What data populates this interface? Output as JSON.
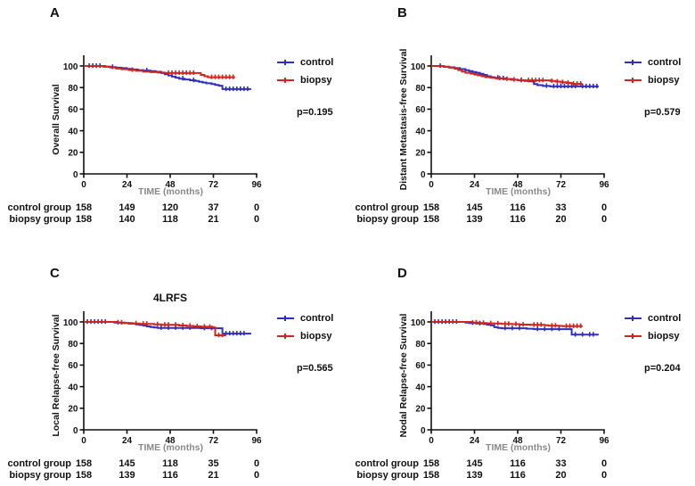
{
  "figure_colors": {
    "control": "#2e2ec0",
    "biopsy": "#d2241d",
    "axis": "#111111",
    "time_label_gray": "#8a8a8a"
  },
  "chart_data": [
    {
      "type": "line",
      "subtype": "kaplan-meier-step",
      "panel": "A",
      "title": "",
      "ylabel": "Overall Survival",
      "xlabel": "TIME (months)",
      "xlim": [
        0,
        96
      ],
      "ylim": [
        0,
        100
      ],
      "xticks": [
        0,
        24,
        48,
        72,
        96
      ],
      "yticks": [
        0,
        20,
        40,
        60,
        80,
        100
      ],
      "legend_position": "right",
      "grid": false,
      "p_value": "p=0.195",
      "series": [
        {
          "name": "control",
          "color": "#2e2ec0",
          "steps": [
            [
              0,
              100
            ],
            [
              11,
              99.4
            ],
            [
              14,
              99
            ],
            [
              18,
              98.4
            ],
            [
              21,
              98
            ],
            [
              24,
              97.3
            ],
            [
              27,
              96.8
            ],
            [
              30,
              96.2
            ],
            [
              33,
              95.8
            ],
            [
              37,
              95.3
            ],
            [
              40,
              94.6
            ],
            [
              43,
              93.5
            ],
            [
              45,
              92.3
            ],
            [
              47,
              91.2
            ],
            [
              49,
              90.2
            ],
            [
              51,
              89.2
            ],
            [
              53,
              88.3
            ],
            [
              56,
              87.5
            ],
            [
              59,
              86.8
            ],
            [
              62,
              86.2
            ],
            [
              64,
              85.4
            ],
            [
              66,
              84.7
            ],
            [
              68,
              84
            ],
            [
              71,
              83.2
            ],
            [
              73,
              82.5
            ],
            [
              75,
              81.7
            ],
            [
              77,
              78.6
            ],
            [
              93,
              78.6
            ]
          ],
          "censor_x": [
            3,
            5,
            7,
            9,
            16,
            35,
            55,
            61,
            79,
            81,
            83,
            85,
            87,
            89,
            91
          ]
        },
        {
          "name": "biopsy",
          "color": "#d2241d",
          "steps": [
            [
              0,
              100
            ],
            [
              12,
              99.4
            ],
            [
              15,
              98.6
            ],
            [
              18,
              97.6
            ],
            [
              21,
              97
            ],
            [
              25,
              96.3
            ],
            [
              29,
              95.5
            ],
            [
              33,
              94.9
            ],
            [
              37,
              94.3
            ],
            [
              41,
              93.9
            ],
            [
              45,
              93.5
            ],
            [
              63,
              93.5
            ],
            [
              65,
              91.7
            ],
            [
              67,
              90.5
            ],
            [
              69,
              89.6
            ],
            [
              84,
              89.6
            ]
          ],
          "censor_x": [
            27,
            47,
            49,
            51,
            53,
            55,
            57,
            59,
            61,
            71,
            73,
            75,
            77,
            79,
            81,
            83
          ]
        }
      ],
      "at_risk": {
        "row_labels": [
          "control group",
          "biopsy group"
        ],
        "time_points": [
          0,
          24,
          48,
          72,
          96
        ],
        "values": [
          [
            158,
            149,
            120,
            37,
            0
          ],
          [
            158,
            140,
            118,
            21,
            0
          ]
        ]
      }
    },
    {
      "type": "line",
      "subtype": "kaplan-meier-step",
      "panel": "B",
      "title": "",
      "ylabel": "Distant Metastasis-free Survival",
      "xlabel": "TIME (months)",
      "xlim": [
        0,
        96
      ],
      "ylim": [
        0,
        100
      ],
      "xticks": [
        0,
        24,
        48,
        72,
        96
      ],
      "yticks": [
        0,
        20,
        40,
        60,
        80,
        100
      ],
      "legend_position": "right",
      "grid": false,
      "p_value": "p=0.579",
      "series": [
        {
          "name": "control",
          "color": "#2e2ec0",
          "steps": [
            [
              0,
              100
            ],
            [
              7,
              99.4
            ],
            [
              10,
              98.8
            ],
            [
              13,
              98
            ],
            [
              16,
              97.1
            ],
            [
              19,
              96.1
            ],
            [
              21,
              95.3
            ],
            [
              23,
              94.5
            ],
            [
              25,
              93.7
            ],
            [
              27,
              92.7
            ],
            [
              29,
              91.7
            ],
            [
              31,
              90.5
            ],
            [
              33,
              89.7
            ],
            [
              35,
              89.1
            ],
            [
              38,
              88.5
            ],
            [
              42,
              87.9
            ],
            [
              45,
              87.3
            ],
            [
              48,
              86.7
            ],
            [
              52,
              86.1
            ],
            [
              55,
              85.7
            ],
            [
              57,
              83.2
            ],
            [
              59,
              82.2
            ],
            [
              62,
              81.5
            ],
            [
              66,
              81.1
            ],
            [
              93,
              81.1
            ]
          ],
          "censor_x": [
            5,
            37,
            40,
            50,
            64,
            68,
            70,
            72,
            74,
            76,
            78,
            80,
            84,
            86,
            88,
            90,
            92
          ]
        },
        {
          "name": "biopsy",
          "color": "#d2241d",
          "steps": [
            [
              0,
              100
            ],
            [
              7,
              99.2
            ],
            [
              10,
              98.4
            ],
            [
              13,
              97.4
            ],
            [
              15,
              96.2
            ],
            [
              17,
              94.9
            ],
            [
              19,
              93.7
            ],
            [
              22,
              92.9
            ],
            [
              24,
              92.1
            ],
            [
              26,
              91.3
            ],
            [
              28,
              90.5
            ],
            [
              30,
              89.7
            ],
            [
              33,
              89.1
            ],
            [
              36,
              88.5
            ],
            [
              40,
              87.9
            ],
            [
              44,
              87.3
            ],
            [
              48,
              86.9
            ],
            [
              52,
              86.7
            ],
            [
              64,
              86.7
            ],
            [
              66,
              86.1
            ],
            [
              69,
              85.5
            ],
            [
              72,
              84.9
            ],
            [
              75,
              84.3
            ],
            [
              78,
              83.5
            ],
            [
              84,
              83.5
            ]
          ],
          "censor_x": [
            38,
            42,
            46,
            50,
            54,
            56,
            58,
            60,
            62,
            67,
            70,
            73,
            76,
            79,
            81,
            83
          ]
        }
      ],
      "at_risk": {
        "row_labels": [
          "control group",
          "biopsy group"
        ],
        "time_points": [
          0,
          24,
          48,
          72,
          96
        ],
        "values": [
          [
            158,
            145,
            116,
            33,
            0
          ],
          [
            158,
            139,
            116,
            20,
            0
          ]
        ]
      }
    },
    {
      "type": "line",
      "subtype": "kaplan-meier-step",
      "panel": "C",
      "title": "4LRFS",
      "ylabel": "Local Relapse-free Survival",
      "xlabel": "TIME (months)",
      "xlim": [
        0,
        96
      ],
      "ylim": [
        0,
        100
      ],
      "xticks": [
        0,
        24,
        48,
        72,
        96
      ],
      "yticks": [
        0,
        20,
        40,
        60,
        80,
        100
      ],
      "legend_position": "right",
      "grid": false,
      "p_value": "p=0.565",
      "series": [
        {
          "name": "control",
          "color": "#2e2ec0",
          "steps": [
            [
              0,
              100
            ],
            [
              15,
              100
            ],
            [
              17,
              99.4
            ],
            [
              21,
              99
            ],
            [
              25,
              98.4
            ],
            [
              29,
              97.8
            ],
            [
              31,
              97.2
            ],
            [
              33,
              96.6
            ],
            [
              35,
              95.9
            ],
            [
              37,
              95.3
            ],
            [
              39,
              94.9
            ],
            [
              41,
              94.5
            ],
            [
              63,
              94.5
            ],
            [
              65,
              94.1
            ],
            [
              76,
              94.1
            ],
            [
              77,
              89.2
            ],
            [
              93,
              89.2
            ]
          ],
          "censor_x": [
            2,
            4,
            6,
            8,
            10,
            12,
            19,
            43,
            47,
            51,
            55,
            59,
            67,
            71,
            79,
            81,
            83,
            85,
            87,
            89
          ]
        },
        {
          "name": "biopsy",
          "color": "#d2241d",
          "steps": [
            [
              0,
              100
            ],
            [
              17,
              100
            ],
            [
              19,
              99.4
            ],
            [
              23,
              99
            ],
            [
              27,
              98.6
            ],
            [
              31,
              98.2
            ],
            [
              37,
              98.2
            ],
            [
              39,
              97.7
            ],
            [
              43,
              97.3
            ],
            [
              49,
              97.3
            ],
            [
              53,
              96.7
            ],
            [
              57,
              96.3
            ],
            [
              61,
              95.9
            ],
            [
              65,
              95.5
            ],
            [
              69,
              95.3
            ],
            [
              72,
              94.9
            ],
            [
              73,
              87.6
            ],
            [
              79,
              87.6
            ]
          ],
          "censor_x": [
            21,
            29,
            33,
            35,
            41,
            45,
            47,
            51,
            55,
            59,
            63,
            67,
            70,
            75,
            77
          ]
        }
      ],
      "at_risk": {
        "row_labels": [
          "control group",
          "biopsy group"
        ],
        "time_points": [
          0,
          24,
          48,
          72,
          96
        ],
        "values": [
          [
            158,
            145,
            118,
            35,
            0
          ],
          [
            158,
            139,
            116,
            21,
            0
          ]
        ]
      }
    },
    {
      "type": "line",
      "subtype": "kaplan-meier-step",
      "panel": "D",
      "title": "",
      "ylabel": "Nodal Relapse-free Survival",
      "xlabel": "TIME (months)",
      "xlim": [
        0,
        96
      ],
      "ylim": [
        0,
        100
      ],
      "xticks": [
        0,
        24,
        48,
        72,
        96
      ],
      "yticks": [
        0,
        20,
        40,
        60,
        80,
        100
      ],
      "legend_position": "right",
      "grid": false,
      "p_value": "p=0.204",
      "series": [
        {
          "name": "control",
          "color": "#2e2ec0",
          "steps": [
            [
              0,
              100
            ],
            [
              17,
              100
            ],
            [
              19,
              99.4
            ],
            [
              21,
              99
            ],
            [
              25,
              98.6
            ],
            [
              29,
              98
            ],
            [
              31,
              97.4
            ],
            [
              33,
              96.8
            ],
            [
              35,
              95.1
            ],
            [
              37,
              94.5
            ],
            [
              39,
              94.1
            ],
            [
              51,
              94.1
            ],
            [
              53,
              93.7
            ],
            [
              57,
              93.3
            ],
            [
              76,
              93.3
            ],
            [
              78,
              88.2
            ],
            [
              93,
              88.2
            ]
          ],
          "censor_x": [
            2,
            4,
            6,
            8,
            10,
            12,
            14,
            23,
            27,
            41,
            45,
            49,
            59,
            63,
            67,
            71,
            80,
            84,
            88,
            90
          ]
        },
        {
          "name": "biopsy",
          "color": "#d2241d",
          "steps": [
            [
              0,
              100
            ],
            [
              21,
              100
            ],
            [
              23,
              99.4
            ],
            [
              27,
              99
            ],
            [
              31,
              98.7
            ],
            [
              35,
              98.5
            ],
            [
              39,
              98.1
            ],
            [
              45,
              97.9
            ],
            [
              49,
              97.5
            ],
            [
              55,
              97.3
            ],
            [
              63,
              96.9
            ],
            [
              65,
              96.5
            ],
            [
              71,
              96.3
            ],
            [
              73,
              96.1
            ],
            [
              84,
              96.1
            ]
          ],
          "censor_x": [
            25,
            29,
            33,
            37,
            41,
            43,
            47,
            51,
            57,
            59,
            61,
            67,
            69,
            75,
            77,
            79,
            81,
            83
          ]
        }
      ],
      "at_risk": {
        "row_labels": [
          "control group",
          "biopsy group"
        ],
        "time_points": [
          0,
          24,
          48,
          72,
          96
        ],
        "values": [
          [
            158,
            145,
            116,
            33,
            0
          ],
          [
            158,
            139,
            116,
            20,
            0
          ]
        ]
      }
    }
  ]
}
